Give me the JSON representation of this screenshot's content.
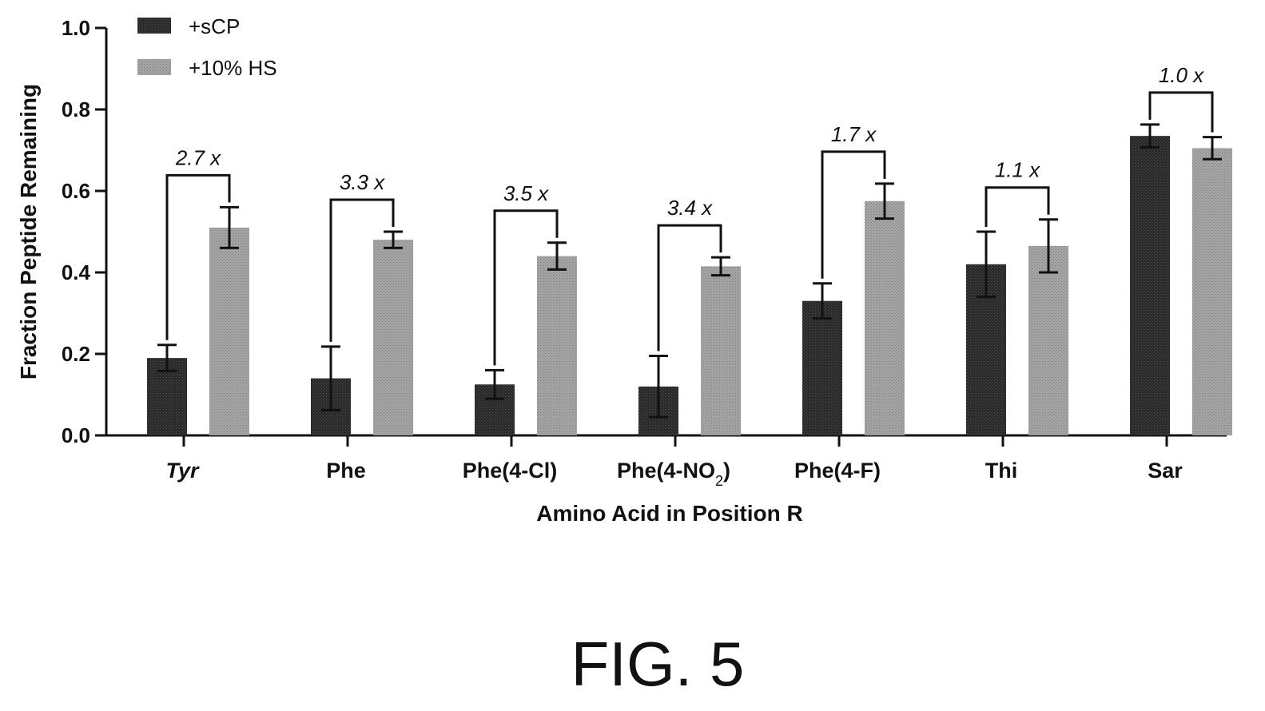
{
  "chart_data": {
    "type": "bar",
    "ylabel": "Fraction  Peptide  Remaining",
    "xlabel": "Amino Acid in  Position R",
    "ylim": [
      0,
      1.0
    ],
    "yticks": [
      "0.0",
      "0.2",
      "0.4",
      "0.6",
      "0.8",
      "1.0"
    ],
    "ytick_values": [
      0,
      0.2,
      0.4,
      0.6,
      0.8,
      1.0
    ],
    "categories": [
      {
        "main": "Tyr",
        "sub": "",
        "tail": "",
        "italic": true
      },
      {
        "main": "Phe",
        "sub": "",
        "tail": "",
        "italic": false
      },
      {
        "main": "Phe(4-Cl)",
        "sub": "",
        "tail": "",
        "italic": false
      },
      {
        "main": "Phe(4-NO",
        "sub": "2",
        "tail": ")",
        "italic": false
      },
      {
        "main": "Phe(4-F)",
        "sub": "",
        "tail": "",
        "italic": false
      },
      {
        "main": "Thi",
        "sub": "",
        "tail": "",
        "italic": false
      },
      {
        "main": "Sar",
        "sub": "",
        "tail": "",
        "italic": false
      }
    ],
    "series": [
      {
        "name": "+sCP",
        "color": "#222222",
        "values": [
          0.19,
          0.14,
          0.125,
          0.12,
          0.33,
          0.42,
          0.735
        ],
        "errors": [
          0.032,
          0.078,
          0.035,
          0.075,
          0.043,
          0.08,
          0.028
        ]
      },
      {
        "name": "+10% HS",
        "color": "#9b9b9b",
        "values": [
          0.51,
          0.48,
          0.44,
          0.415,
          0.575,
          0.465,
          0.705
        ],
        "errors": [
          0.05,
          0.02,
          0.033,
          0.022,
          0.043,
          0.065,
          0.027
        ]
      }
    ],
    "fold_changes": [
      "2.7 x",
      "3.3 x",
      "3.5 x",
      "3.4 x",
      "1.7 x",
      "1.1 x",
      "1.0 x"
    ],
    "legend": "top-left",
    "grid": false
  },
  "figure_caption": "FIG. 5"
}
